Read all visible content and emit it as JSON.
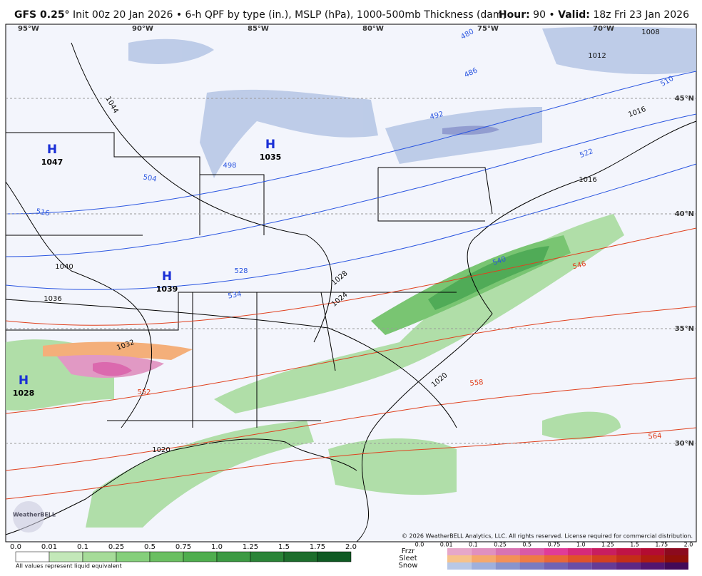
{
  "header": {
    "model": "GFS 0.25°",
    "description": "Init 00z 20 Jan 2026 • 6-h QPF by type (in.), MSLP (hPa), 1000-500mb Thickness (dam)",
    "hour_label": "Hour:",
    "hour": "90 •",
    "valid_label": "Valid:",
    "valid": "18z Fri 23 Jan 2026"
  },
  "map": {
    "longitudes": [
      "95°W",
      "90°W",
      "85°W",
      "80°W",
      "75°W",
      "70°W"
    ],
    "latitudes": [
      "45°N",
      "40°N",
      "35°N",
      "30°N"
    ],
    "highs": [
      {
        "symbol": "H",
        "pressure": "1047"
      },
      {
        "symbol": "H",
        "pressure": "1035"
      },
      {
        "symbol": "H",
        "pressure": "1039"
      },
      {
        "symbol": "H",
        "pressure": "1028"
      }
    ],
    "isobar_labels": [
      "1044",
      "1040",
      "1036",
      "1032",
      "1028",
      "1024",
      "1020",
      "1020",
      "1008",
      "1012",
      "1016",
      "1016"
    ],
    "thickness_labels_blue": [
      "480",
      "486",
      "492",
      "498",
      "504",
      "510",
      "516",
      "522",
      "528",
      "534",
      "540"
    ],
    "thickness_labels_red": [
      "546",
      "552",
      "558",
      "564"
    ],
    "copyright": "© 2026 WeatherBELL Analytics, LLC. All rights reserved. License required for commercial distribution.",
    "logo": "WeatherBELL"
  },
  "legend": {
    "rain_scale": [
      "0.0",
      "0.01",
      "0.1",
      "0.25",
      "0.5",
      "0.75",
      "1.0",
      "1.25",
      "1.5",
      "1.75",
      "2.0"
    ],
    "note": "All values represent liquid equivalent",
    "types": [
      "Frzr",
      "Sleet",
      "Snow"
    ],
    "type_scale": [
      "0.0",
      "0.01",
      "0.1",
      "0.25",
      "0.5",
      "0.75",
      "1.0",
      "1.25",
      "1.5",
      "1.75",
      "2.0"
    ]
  }
}
